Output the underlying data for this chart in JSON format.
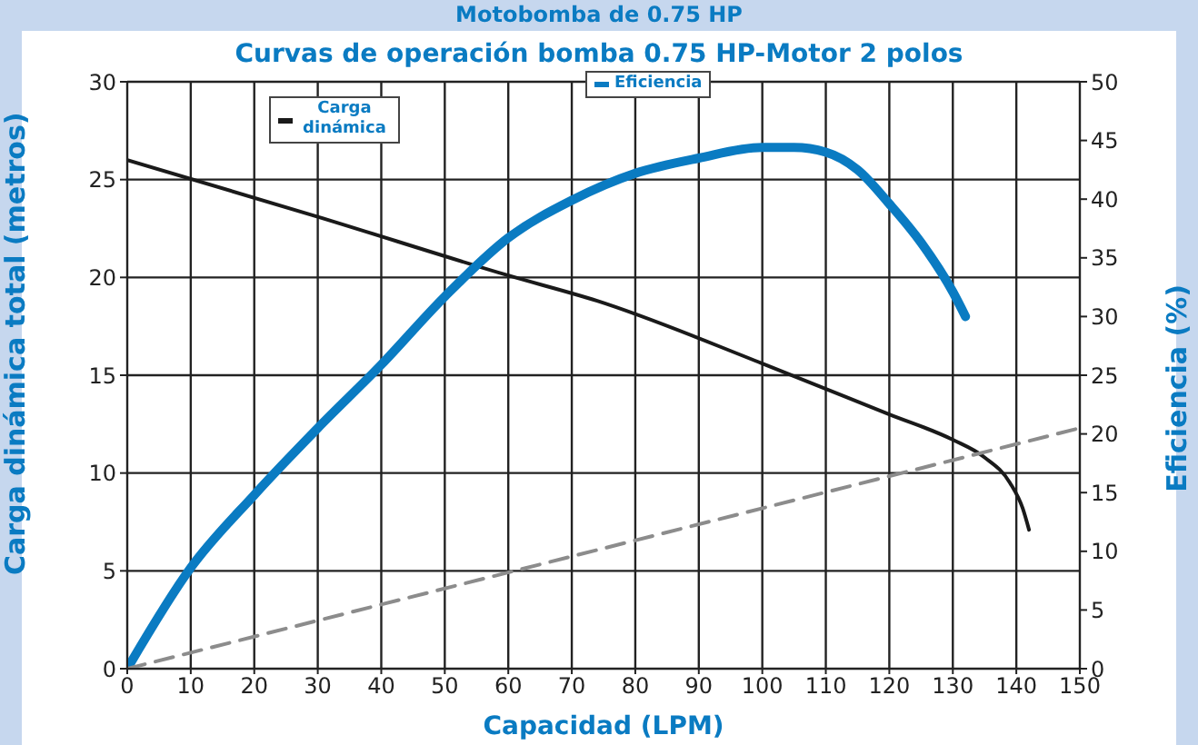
{
  "chart_data": {
    "type": "line",
    "title": "Motobomba de 0.75 HP",
    "subtitle": "Curvas de operación bomba 0.75 HP-Motor 2 polos",
    "xlabel": "Capacidad (LPM)",
    "ylabel": "Carga dinámica total (metros)",
    "y2label": "Eficiencia (%)",
    "xlim": [
      0,
      150
    ],
    "xticks": [
      0,
      10,
      20,
      30,
      40,
      50,
      60,
      70,
      80,
      90,
      100,
      110,
      120,
      130,
      140,
      150
    ],
    "ylim": [
      0,
      30
    ],
    "yticks": [
      0,
      5,
      10,
      15,
      20,
      25,
      30
    ],
    "y2lim": [
      0,
      50
    ],
    "y2ticks": [
      0,
      5,
      10,
      15,
      20,
      25,
      30,
      35,
      40,
      45,
      50
    ],
    "grid": true,
    "legend": "top",
    "marker": "none",
    "series": [
      {
        "name": "Carga dinámica",
        "color": "#1a1a1a",
        "x": [
          0,
          30,
          60,
          74,
          100,
          120,
          130,
          135,
          139,
          141,
          142
        ],
        "values": [
          26,
          23.1,
          20.1,
          18.8,
          15.6,
          13,
          11.7,
          10.8,
          9.5,
          8.2,
          7.1
        ]
      },
      {
        "name": "Eficiencia",
        "color": "#0a7bc2",
        "axis": "y2",
        "x": [
          0,
          10,
          20,
          30,
          40,
          50,
          60,
          70,
          80,
          90,
          100,
          105,
          110,
          115,
          120,
          125,
          130,
          132
        ],
        "values": [
          0,
          8.6,
          14.8,
          20.5,
          25.9,
          31.7,
          36.7,
          39.9,
          42.2,
          43.5,
          44.4,
          44.4,
          44,
          42.5,
          39.6,
          36.3,
          32.1,
          30
        ]
      },
      {
        "color": "#8c8c8c",
        "line_style": "dashed",
        "x": [
          0,
          150
        ],
        "values": [
          0,
          12.3
        ]
      }
    ]
  }
}
